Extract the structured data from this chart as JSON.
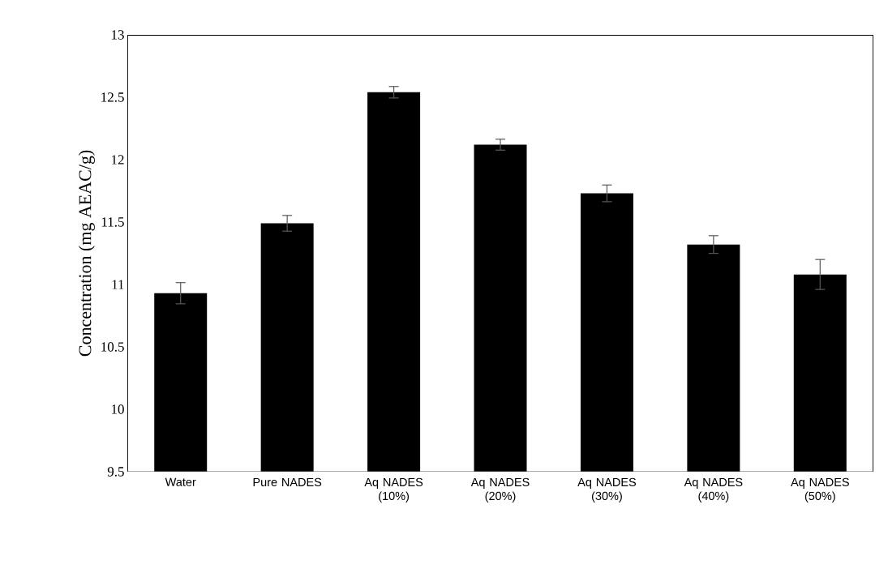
{
  "chart_data": {
    "type": "bar",
    "ylabel": "Concentration (mg AEAC/g)",
    "categories": [
      "Water",
      "Pure NADES",
      "Aq NADES (10%)",
      "Aq NADES (20%)",
      "Aq NADES (30%)",
      "Aq NADES (40%)",
      "Aq NADES (50%)"
    ],
    "values": [
      10.93,
      11.49,
      12.54,
      12.12,
      11.73,
      11.32,
      11.08
    ],
    "errors": [
      0.085,
      0.063,
      0.046,
      0.044,
      0.067,
      0.071,
      0.12
    ],
    "color": "#000000",
    "ylim": [
      9.5,
      13
    ],
    "yticks": [
      9.5,
      10,
      10.5,
      11,
      11.5,
      12,
      12.5,
      13
    ]
  }
}
